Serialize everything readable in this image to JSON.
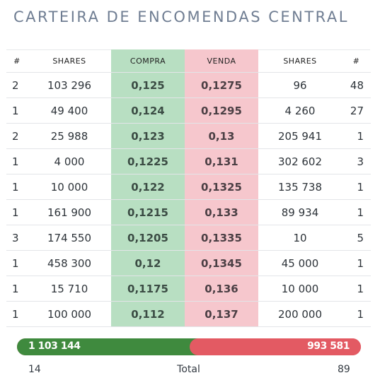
{
  "title": "CARTEIRA DE ENCOMENDAS CENTRAL",
  "colors": {
    "buy_bg": "#b8dfc2",
    "sell_bg": "#f6c7cd",
    "buy_bar": "#3f8a3e",
    "sell_bar": "#e35a63"
  },
  "headers": [
    "#",
    "SHARES",
    "COMPRA",
    "VENDA",
    "SHARES",
    "#"
  ],
  "rows": [
    [
      "2",
      "103 296",
      "0,125",
      "0,1275",
      "96",
      "48"
    ],
    [
      "1",
      "49 400",
      "0,124",
      "0,1295",
      "4 260",
      "27"
    ],
    [
      "2",
      "25 988",
      "0,123",
      "0,13",
      "205 941",
      "1"
    ],
    [
      "1",
      "4 000",
      "0,1225",
      "0,131",
      "302 602",
      "3"
    ],
    [
      "1",
      "10 000",
      "0,122",
      "0,1325",
      "135 738",
      "1"
    ],
    [
      "1",
      "161 900",
      "0,1215",
      "0,133",
      "89 934",
      "1"
    ],
    [
      "3",
      "174 550",
      "0,1205",
      "0,1335",
      "10",
      "5"
    ],
    [
      "1",
      "458 300",
      "0,12",
      "0,1345",
      "45 000",
      "1"
    ],
    [
      "1",
      "15 710",
      "0,1175",
      "0,136",
      "10 000",
      "1"
    ],
    [
      "1",
      "100 000",
      "0,112",
      "0,137",
      "200 000",
      "1"
    ]
  ],
  "totals": {
    "buy_shares": "1 103 144",
    "sell_shares": "993 581",
    "buy_fraction": 0.526,
    "buy_orders": "14",
    "sell_orders": "89",
    "label": "Total"
  }
}
